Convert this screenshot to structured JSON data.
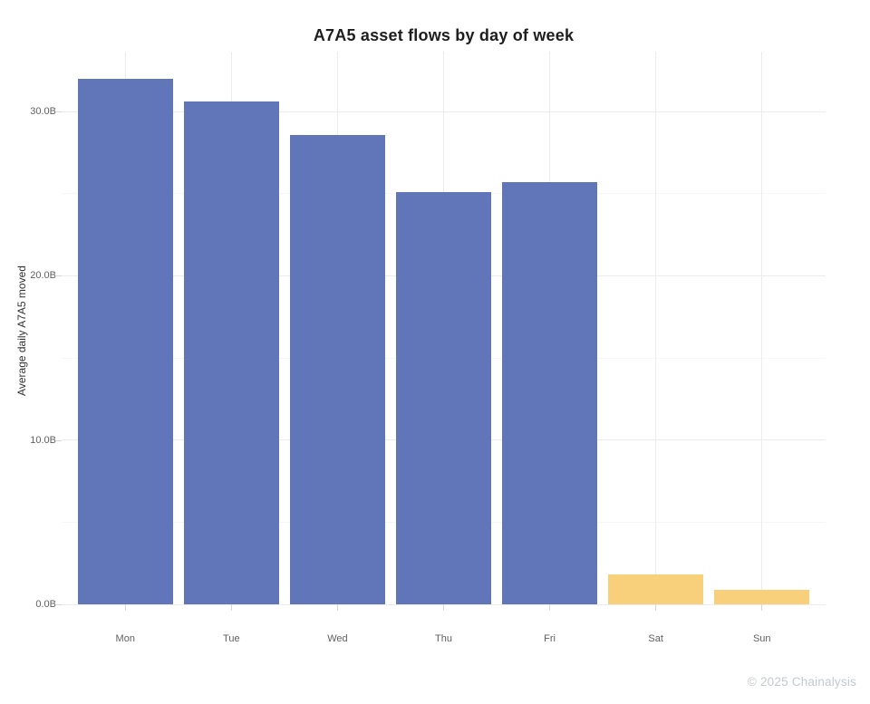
{
  "title": "A7A5 asset flows by day of week",
  "footer": "© 2025 Chainalysis",
  "chart_data": {
    "type": "bar",
    "title": "A7A5 asset flows by day of week",
    "xlabel": "",
    "ylabel": "Average daily A7A5 moved",
    "categories": [
      "Mon",
      "Tue",
      "Wed",
      "Thu",
      "Fri",
      "Sat",
      "Sun"
    ],
    "values": [
      32.0,
      30.6,
      28.6,
      25.1,
      25.7,
      1.8,
      0.9
    ],
    "unit": "B",
    "ylim": [
      0,
      33.65
    ],
    "yticks": [
      0,
      10,
      20,
      30
    ],
    "ytick_labels": [
      "0.0B",
      "10.0B",
      "20.0B",
      "30.0B"
    ],
    "yticks_minor": [
      5,
      15,
      25
    ],
    "grid": "on",
    "legend": "none",
    "bar_colors": [
      "#6176B8",
      "#6176B8",
      "#6176B8",
      "#6176B8",
      "#6176B8",
      "#F8D07C",
      "#F8D07C"
    ],
    "colors": {
      "weekday_bar": "#6176B8",
      "weekend_bar": "#F8D07C",
      "grid_major": "#ececec",
      "grid_minor": "#f6f6f6",
      "grid_vertical": "#ececec",
      "tick_mark": "#d6d6d6",
      "axis_text": "#606060",
      "title_text": "#1e1e1e",
      "footer_text": "#c3c9d1"
    }
  }
}
